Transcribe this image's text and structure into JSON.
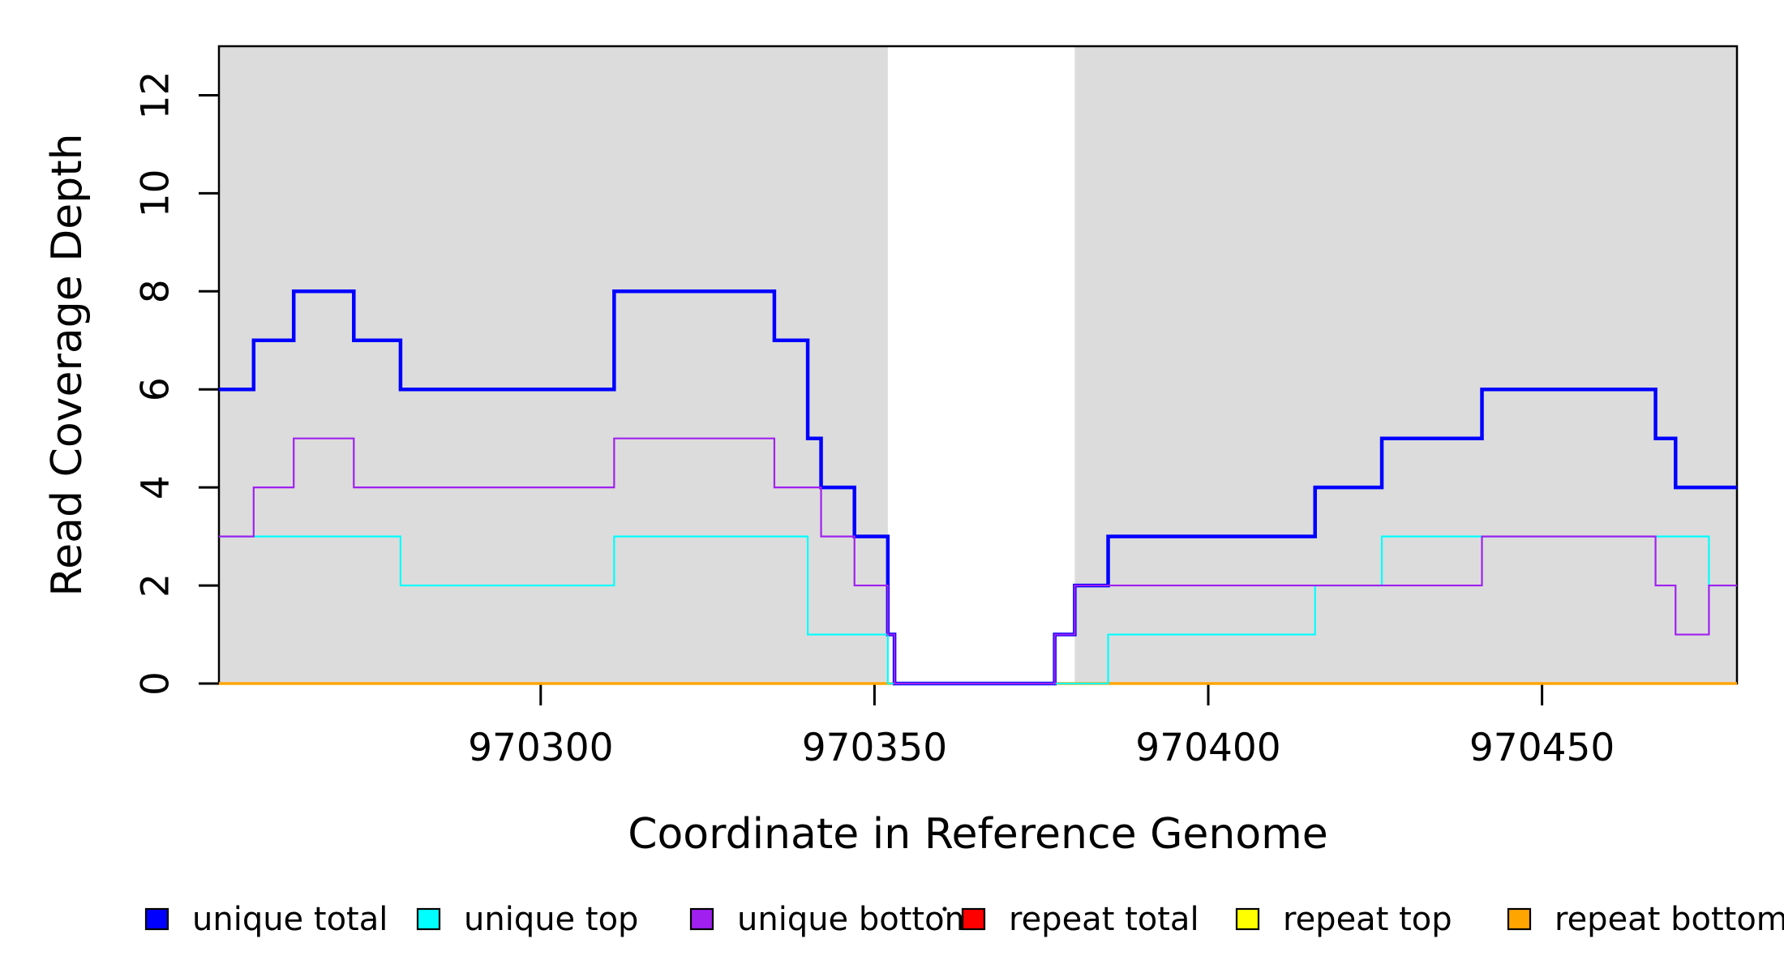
{
  "chart_data": {
    "type": "line",
    "subtype": "step-coverage",
    "title": "",
    "xlabel": "Coordinate in Reference Genome",
    "ylabel": "Read Coverage Depth",
    "xlim": [
      970251.8,
      970479.2
    ],
    "ylim": [
      0,
      13
    ],
    "x_ticks": [
      {
        "value": 970300,
        "label": "970300"
      },
      {
        "value": 970350,
        "label": "970350"
      },
      {
        "value": 970400,
        "label": "970400"
      },
      {
        "value": 970450,
        "label": "970450"
      }
    ],
    "y_ticks": [
      {
        "value": 0,
        "label": "0"
      },
      {
        "value": 2,
        "label": "2"
      },
      {
        "value": 4,
        "label": "4"
      },
      {
        "value": 6,
        "label": "6"
      },
      {
        "value": 8,
        "label": "8"
      },
      {
        "value": 10,
        "label": "10"
      },
      {
        "value": 12,
        "label": "12"
      }
    ],
    "grid": false,
    "legend_position": "bottom",
    "shaded_regions": {
      "color": "#DCDCDC",
      "regions": [
        {
          "from": 970251.8,
          "to": 970352
        },
        {
          "from": 970380,
          "to": 970479.2
        }
      ]
    },
    "series": [
      {
        "name": "repeat total",
        "color": "#FF0000",
        "width": 3,
        "start": 0,
        "steps": []
      },
      {
        "name": "repeat top",
        "color": "#FFFF00",
        "width": 3,
        "start": 0,
        "steps": []
      },
      {
        "name": "repeat bottom",
        "color": "#FFA500",
        "width": 3.5,
        "start": 0,
        "steps": []
      },
      {
        "name": "unique total",
        "color": "#0000FF",
        "width": 4.5,
        "start": 6,
        "steps": [
          [
            970257,
            7
          ],
          [
            970263,
            8
          ],
          [
            970272,
            7
          ],
          [
            970279,
            6
          ],
          [
            970311,
            8
          ],
          [
            970335,
            7
          ],
          [
            970340,
            5
          ],
          [
            970342,
            4
          ],
          [
            970347,
            3
          ],
          [
            970352,
            1
          ],
          [
            970353,
            0
          ],
          [
            970377,
            1
          ],
          [
            970380,
            2
          ],
          [
            970385,
            3
          ],
          [
            970416,
            4
          ],
          [
            970426,
            5
          ],
          [
            970441,
            6
          ],
          [
            970467,
            5
          ],
          [
            970470,
            4
          ]
        ]
      },
      {
        "name": "unique top",
        "color": "#00FFFF",
        "width": 2.2,
        "start": 3,
        "steps": [
          [
            970279,
            2
          ],
          [
            970311,
            3
          ],
          [
            970340,
            1
          ],
          [
            970352,
            0
          ],
          [
            970385,
            1
          ],
          [
            970416,
            2
          ],
          [
            970426,
            3
          ],
          [
            970475,
            2
          ]
        ]
      },
      {
        "name": "unique bottom",
        "color": "#A020F0",
        "width": 2.2,
        "start": 3,
        "steps": [
          [
            970257,
            4
          ],
          [
            970263,
            5
          ],
          [
            970272,
            4
          ],
          [
            970311,
            5
          ],
          [
            970335,
            4
          ],
          [
            970342,
            3
          ],
          [
            970347,
            2
          ],
          [
            970352,
            1
          ],
          [
            970353,
            0
          ],
          [
            970377,
            1
          ],
          [
            970380,
            2
          ],
          [
            970441,
            3
          ],
          [
            970467,
            2
          ],
          [
            970470,
            1
          ],
          [
            970475,
            2
          ]
        ]
      }
    ],
    "legend": [
      {
        "label": "unique total",
        "color": "#0000FF"
      },
      {
        "label": "unique top",
        "color": "#00FFFF"
      },
      {
        "label": "unique bottom",
        "color": "#A020F0"
      },
      {
        "label": "repeat total",
        "color": "#FF0000"
      },
      {
        "label": "repeat top",
        "color": "#FFFF00"
      },
      {
        "label": "repeat bottom",
        "color": "#FFA500"
      }
    ],
    "annotations": {
      "stray_dot": "·"
    }
  },
  "style": {
    "axis_color": "#000000",
    "panel_fill": "#DCDCDC",
    "background": "#FFFFFF"
  }
}
